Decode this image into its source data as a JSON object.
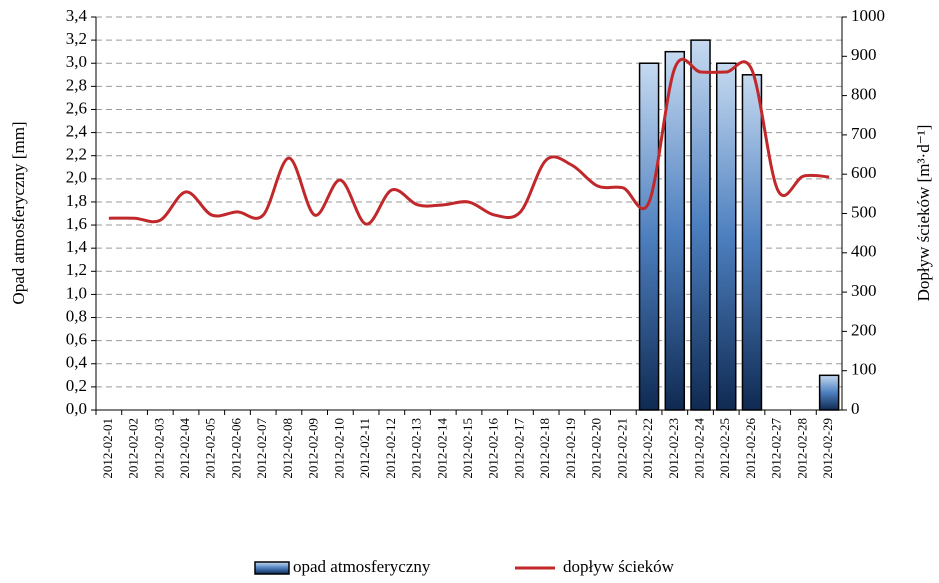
{
  "chart_data": {
    "type": "bar-line",
    "y_label": "Opad atmosferyczny [mm]",
    "y2_label": "Dopływ ścieków [m³·d⁻¹]",
    "categories": [
      "2012-02-01",
      "2012-02-02",
      "2012-02-03",
      "2012-02-04",
      "2012-02-05",
      "2012-02-06",
      "2012-02-07",
      "2012-02-08",
      "2012-02-09",
      "2012-02-10",
      "2012-02-11",
      "2012-02-12",
      "2012-02-13",
      "2012-02-14",
      "2012-02-15",
      "2012-02-16",
      "2012-02-17",
      "2012-02-18",
      "2012-02-19",
      "2012-02-20",
      "2012-02-21",
      "2012-02-22",
      "2012-02-23",
      "2012-02-24",
      "2012-02-25",
      "2012-02-26",
      "2012-02-27",
      "2012-02-28",
      "2012-02-29"
    ],
    "series": [
      {
        "name": "opad atmosferyczny",
        "type": "bar",
        "color": "#1f3d6e",
        "values": [
          0,
          0,
          0,
          0,
          0,
          0,
          0,
          0,
          0,
          0,
          0,
          0,
          0,
          0,
          0,
          0,
          0,
          0,
          0,
          0,
          0,
          3.0,
          3.1,
          3.2,
          3.0,
          2.9,
          0,
          0,
          0.3
        ]
      },
      {
        "name": "dopływ ścieków",
        "type": "line",
        "axis": "y2",
        "color": "#c0282b",
        "values": [
          488,
          488,
          483,
          555,
          496,
          504,
          496,
          641,
          496,
          585,
          473,
          560,
          522,
          522,
          529,
          496,
          504,
          636,
          623,
          570,
          565,
          529,
          870,
          860,
          860,
          865,
          560,
          595,
          593
        ]
      }
    ],
    "ylim": [
      0,
      3.4
    ],
    "yticks": [
      {
        "value": 0,
        "label": "0,0"
      },
      {
        "value": 0.2,
        "label": "0,2"
      },
      {
        "value": 0.4,
        "label": "0,4"
      },
      {
        "value": 0.6,
        "label": "0,6"
      },
      {
        "value": 0.8,
        "label": "0,8"
      },
      {
        "value": 1.0,
        "label": "1,0"
      },
      {
        "value": 1.2,
        "label": "1,2"
      },
      {
        "value": 1.4,
        "label": "1,4"
      },
      {
        "value": 1.6,
        "label": "1,6"
      },
      {
        "value": 1.8,
        "label": "1,8"
      },
      {
        "value": 2.0,
        "label": "2,0"
      },
      {
        "value": 2.2,
        "label": "2,2"
      },
      {
        "value": 2.4,
        "label": "2,4"
      },
      {
        "value": 2.6,
        "label": "2,6"
      },
      {
        "value": 2.8,
        "label": "2,8"
      },
      {
        "value": 3.0,
        "label": "3,0"
      },
      {
        "value": 3.2,
        "label": "3,2"
      },
      {
        "value": 3.4,
        "label": "3,4"
      }
    ],
    "y2lim": [
      0,
      1000
    ],
    "y2ticks": [
      0,
      100,
      200,
      300,
      400,
      500,
      600,
      700,
      800,
      900,
      1000
    ],
    "grid": true
  }
}
